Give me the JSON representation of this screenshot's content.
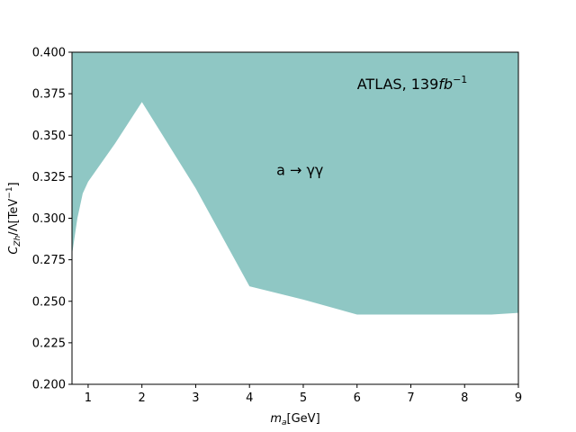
{
  "chart_data": {
    "type": "area",
    "title": "",
    "xlabel": "m",
    "xlabel_sub": "a",
    "xlabel_unit": "[GeV]",
    "ylabel": "C",
    "ylabel_sub": "Zh",
    "ylabel_rest": "/Λ[TeV",
    "ylabel_sup": "−1",
    "ylabel_close": "]",
    "xlim": [
      0.7,
      9
    ],
    "ylim": [
      0.2,
      0.4
    ],
    "xticks": [
      1,
      2,
      3,
      4,
      5,
      6,
      7,
      8,
      9
    ],
    "xtick_labels": [
      "1",
      "2",
      "3",
      "4",
      "5",
      "6",
      "7",
      "8",
      "9"
    ],
    "yticks": [
      0.2,
      0.225,
      0.25,
      0.275,
      0.3,
      0.325,
      0.35,
      0.375,
      0.4
    ],
    "ytick_labels": [
      "0.200",
      "0.225",
      "0.250",
      "0.275",
      "0.300",
      "0.325",
      "0.350",
      "0.375",
      "0.400"
    ],
    "grid": false,
    "fill_color": "#8fc7c4",
    "series": [
      {
        "name": "",
        "fill_to": "top",
        "x": [
          0.7,
          0.8,
          0.9,
          1.0,
          1.5,
          2.0,
          3.0,
          4.0,
          5.0,
          6.0,
          7.0,
          8.0,
          8.5,
          9.0
        ],
        "y": [
          0.278,
          0.3,
          0.315,
          0.322,
          0.345,
          0.37,
          0.318,
          0.259,
          0.251,
          0.242,
          0.242,
          0.242,
          0.242,
          0.243
        ]
      }
    ],
    "annotations": [
      {
        "text_main": "ATLAS, 139",
        "text_italic": "fb",
        "text_sup": "−1",
        "x": 6.0,
        "y": 0.38
      },
      {
        "text_main": "a → γγ",
        "x": 4.5,
        "y": 0.326
      }
    ]
  }
}
